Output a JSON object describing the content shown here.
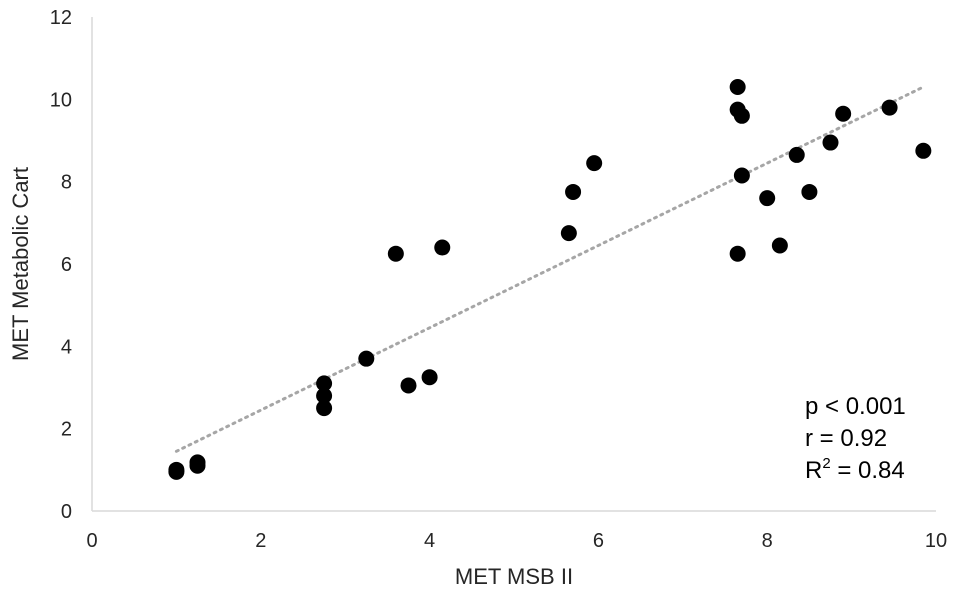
{
  "chart_data": {
    "type": "scatter",
    "xlabel": "MET MSB II",
    "ylabel": "MET Metabolic Cart",
    "xlim": [
      0,
      10
    ],
    "ylim": [
      0,
      12
    ],
    "xticks": [
      0,
      2,
      4,
      6,
      8,
      10
    ],
    "yticks": [
      0,
      2,
      4,
      6,
      8,
      10,
      12
    ],
    "grid": false,
    "series": [
      {
        "color": "#000000",
        "points": [
          {
            "x": 1.0,
            "y": 0.95
          },
          {
            "x": 1.0,
            "y": 1.0
          },
          {
            "x": 1.25,
            "y": 1.1
          },
          {
            "x": 1.25,
            "y": 1.18
          },
          {
            "x": 2.75,
            "y": 2.5
          },
          {
            "x": 2.75,
            "y": 2.8
          },
          {
            "x": 2.75,
            "y": 3.1
          },
          {
            "x": 3.25,
            "y": 3.7
          },
          {
            "x": 3.6,
            "y": 6.25
          },
          {
            "x": 3.75,
            "y": 3.05
          },
          {
            "x": 4.0,
            "y": 3.25
          },
          {
            "x": 4.15,
            "y": 6.4
          },
          {
            "x": 5.65,
            "y": 6.75
          },
          {
            "x": 5.7,
            "y": 7.75
          },
          {
            "x": 5.95,
            "y": 8.45
          },
          {
            "x": 7.65,
            "y": 10.3
          },
          {
            "x": 7.65,
            "y": 9.75
          },
          {
            "x": 7.7,
            "y": 9.6
          },
          {
            "x": 7.7,
            "y": 8.15
          },
          {
            "x": 7.65,
            "y": 6.25
          },
          {
            "x": 8.0,
            "y": 7.6
          },
          {
            "x": 8.15,
            "y": 6.45
          },
          {
            "x": 8.35,
            "y": 8.65
          },
          {
            "x": 8.5,
            "y": 7.75
          },
          {
            "x": 8.75,
            "y": 8.95
          },
          {
            "x": 8.9,
            "y": 9.65
          },
          {
            "x": 9.45,
            "y": 9.8
          },
          {
            "x": 9.85,
            "y": 8.75
          }
        ]
      }
    ],
    "trendline": {
      "style": "dotted",
      "color": "#a6a6a6",
      "from": {
        "x": 1.0,
        "y": 1.45
      },
      "to": {
        "x": 9.85,
        "y": 10.3
      }
    },
    "annotations": [
      {
        "id": "p",
        "text": "p < 0.001"
      },
      {
        "id": "r",
        "text": "r = 0.92"
      },
      {
        "id": "r2",
        "text": "R",
        "sup": "2",
        "rest": " = 0.84"
      }
    ]
  }
}
